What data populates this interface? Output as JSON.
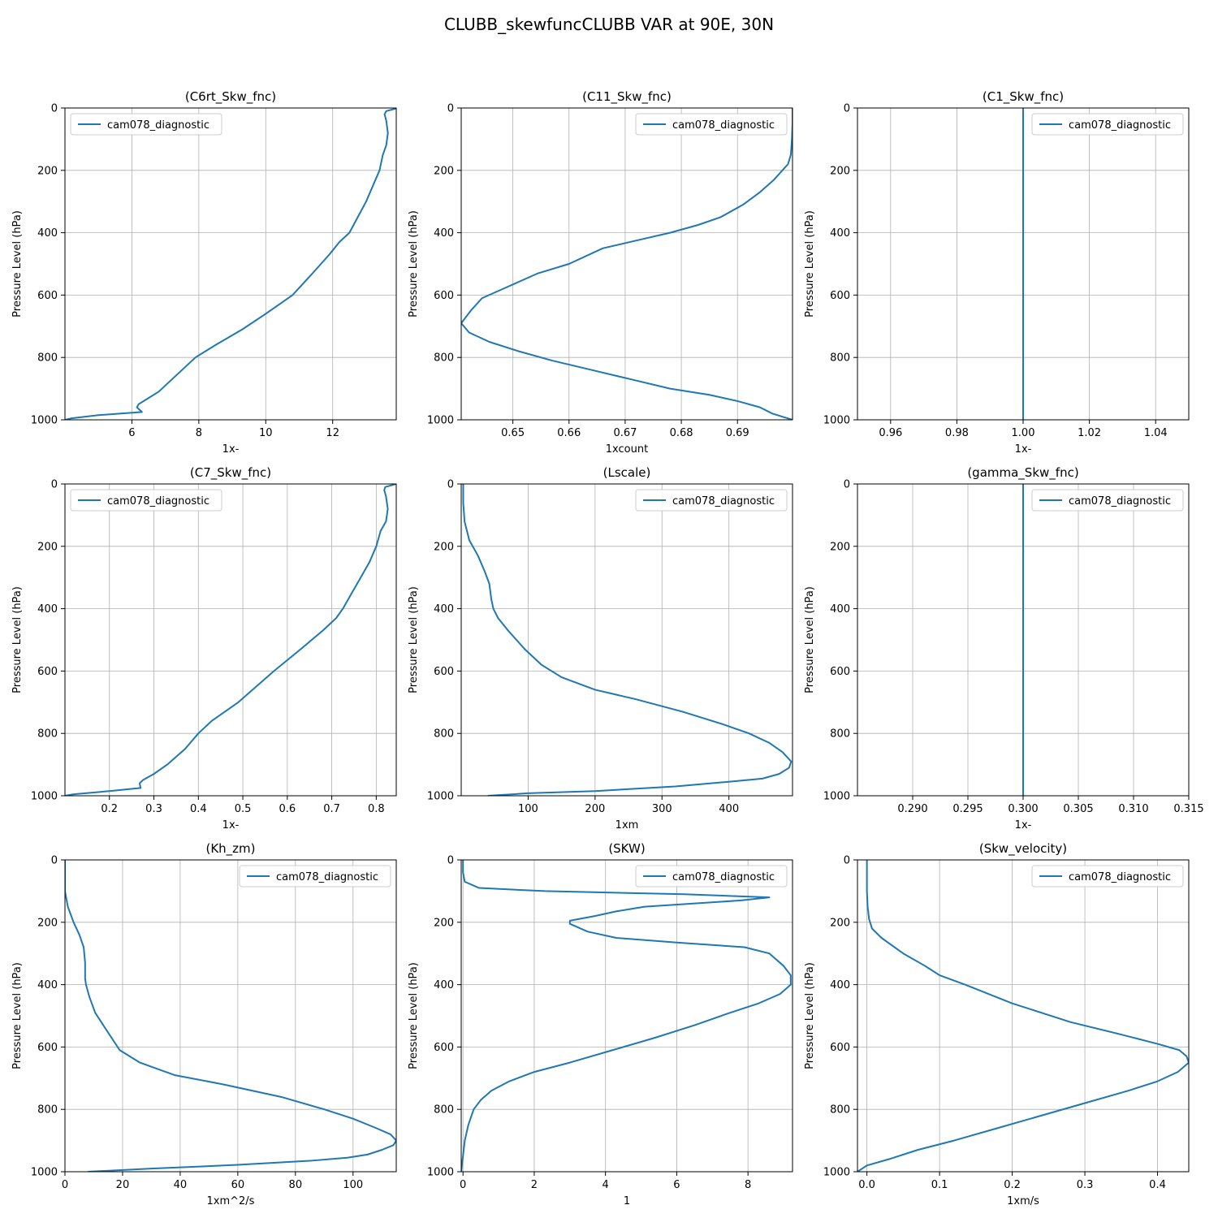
{
  "suptitle": "CLUBB_skewfuncCLUBB VAR at 90E, 30N",
  "line_color": "#1f77b4",
  "chart_data": [
    {
      "type": "line",
      "title": "(C6rt_Skw_fnc)",
      "xlabel": "1x-",
      "ylabel": "Pressure Level (hPa)",
      "xlim": [
        4.0,
        13.9
      ],
      "ylim": [
        1000,
        0
      ],
      "xticks": [
        "6",
        "8",
        "10",
        "12"
      ],
      "xtick_values": [
        6,
        8,
        10,
        12
      ],
      "yticks": [
        0,
        200,
        400,
        600,
        800,
        1000
      ],
      "grid": true,
      "legend_loc": "upper-left",
      "series": [
        {
          "name": "cam078_diagnostic",
          "x": [
            13.95,
            13.6,
            13.55,
            13.6,
            13.65,
            13.6,
            13.5,
            13.4,
            13.2,
            13.0,
            12.75,
            12.5,
            12.2,
            11.9,
            11.4,
            10.8,
            10.0,
            9.3,
            8.5,
            7.9,
            7.5,
            7.2,
            6.8,
            6.5,
            6.2,
            6.15,
            6.3,
            5.0,
            4.2,
            4.0
          ],
          "y": [
            0,
            10,
            20,
            40,
            80,
            120,
            150,
            200,
            250,
            300,
            350,
            400,
            430,
            470,
            530,
            600,
            660,
            710,
            760,
            800,
            840,
            870,
            910,
            930,
            950,
            960,
            975,
            985,
            995,
            1000
          ]
        }
      ]
    },
    {
      "type": "line",
      "title": "(C11_Skw_fnc)",
      "xlabel": "1xcount",
      "ylabel": "Pressure Level (hPa)",
      "xlim": [
        0.6408,
        0.6998
      ],
      "ylim": [
        1000,
        0
      ],
      "xticks": [
        "0.65",
        "0.66",
        "0.67",
        "0.68",
        "0.69"
      ],
      "xtick_values": [
        0.65,
        0.66,
        0.67,
        0.68,
        0.69
      ],
      "yticks": [
        0,
        200,
        400,
        600,
        800,
        1000
      ],
      "grid": true,
      "legend_loc": "upper-right",
      "series": [
        {
          "name": "cam078_diagnostic",
          "x": [
            0.6998,
            0.6998,
            0.6997,
            0.6995,
            0.699,
            0.698,
            0.6965,
            0.694,
            0.691,
            0.687,
            0.683,
            0.678,
            0.672,
            0.666,
            0.66,
            0.6545,
            0.6495,
            0.6445,
            0.6425,
            0.6408,
            0.6422,
            0.6458,
            0.651,
            0.657,
            0.664,
            0.671,
            0.678,
            0.685,
            0.69,
            0.694,
            0.6962,
            0.6998
          ],
          "y": [
            0,
            50,
            100,
            150,
            180,
            200,
            230,
            270,
            310,
            350,
            375,
            400,
            425,
            450,
            500,
            530,
            570,
            610,
            650,
            690,
            720,
            750,
            780,
            810,
            840,
            870,
            900,
            920,
            940,
            960,
            980,
            1000
          ]
        }
      ]
    },
    {
      "type": "line",
      "title": "(C1_Skw_fnc)",
      "xlabel": "1x-",
      "ylabel": "Pressure Level (hPa)",
      "xlim": [
        0.95,
        1.05
      ],
      "ylim": [
        1000,
        0
      ],
      "xticks": [
        "0.96",
        "0.98",
        "1.00",
        "1.02",
        "1.04"
      ],
      "xtick_values": [
        0.96,
        0.98,
        1.0,
        1.02,
        1.04
      ],
      "yticks": [
        0,
        200,
        400,
        600,
        800,
        1000
      ],
      "grid": true,
      "legend_loc": "upper-right",
      "series": [
        {
          "name": "cam078_diagnostic",
          "x": [
            1.0,
            1.0
          ],
          "y": [
            0,
            1000
          ]
        }
      ]
    },
    {
      "type": "line",
      "title": "(C7_Skw_fnc)",
      "xlabel": "1x-",
      "ylabel": "Pressure Level (hPa)",
      "xlim": [
        0.1,
        0.845
      ],
      "ylim": [
        1000,
        0
      ],
      "xticks": [
        "0.2",
        "0.3",
        "0.4",
        "0.5",
        "0.6",
        "0.7",
        "0.8"
      ],
      "xtick_values": [
        0.2,
        0.3,
        0.4,
        0.5,
        0.6,
        0.7,
        0.8
      ],
      "yticks": [
        0,
        200,
        400,
        600,
        800,
        1000
      ],
      "grid": true,
      "legend_loc": "upper-left",
      "series": [
        {
          "name": "cam078_diagnostic",
          "x": [
            0.845,
            0.82,
            0.818,
            0.822,
            0.826,
            0.822,
            0.81,
            0.8,
            0.785,
            0.765,
            0.745,
            0.725,
            0.71,
            0.68,
            0.63,
            0.57,
            0.49,
            0.43,
            0.4,
            0.37,
            0.33,
            0.3,
            0.275,
            0.268,
            0.27,
            0.2,
            0.12,
            0.1
          ],
          "y": [
            0,
            10,
            20,
            40,
            80,
            120,
            150,
            200,
            250,
            300,
            350,
            400,
            430,
            470,
            530,
            600,
            700,
            760,
            800,
            850,
            900,
            930,
            950,
            960,
            975,
            985,
            995,
            1000
          ]
        }
      ]
    },
    {
      "type": "line",
      "title": "(Lscale)",
      "xlabel": "1xm",
      "ylabel": "Pressure Level (hPa)",
      "xlim": [
        0,
        495
      ],
      "ylim": [
        1000,
        0
      ],
      "xticks": [
        "100",
        "200",
        "300",
        "400"
      ],
      "xtick_values": [
        100,
        200,
        300,
        400
      ],
      "yticks": [
        0,
        200,
        400,
        600,
        800,
        1000
      ],
      "grid": true,
      "legend_loc": "upper-right",
      "series": [
        {
          "name": "cam078_diagnostic",
          "x": [
            3,
            3,
            5,
            12,
            25,
            35,
            42,
            45,
            48,
            55,
            70,
            95,
            120,
            150,
            200,
            260,
            330,
            390,
            430,
            460,
            480,
            493,
            490,
            475,
            450,
            400,
            320,
            200,
            100,
            40
          ],
          "y": [
            0,
            60,
            120,
            180,
            230,
            280,
            320,
            370,
            400,
            430,
            470,
            530,
            580,
            620,
            660,
            690,
            730,
            770,
            800,
            830,
            860,
            890,
            910,
            930,
            945,
            955,
            970,
            985,
            992,
            1000
          ]
        }
      ]
    },
    {
      "type": "line",
      "title": "(gamma_Skw_fnc)",
      "xlabel": "1x-",
      "ylabel": "Pressure Level (hPa)",
      "xlim": [
        0.285,
        0.315
      ],
      "ylim": [
        1000,
        0
      ],
      "xticks": [
        "0.290",
        "0.295",
        "0.300",
        "0.305",
        "0.310",
        "0.315"
      ],
      "xtick_values": [
        0.29,
        0.295,
        0.3,
        0.305,
        0.31,
        0.315
      ],
      "yticks": [
        0,
        200,
        400,
        600,
        800,
        1000
      ],
      "grid": true,
      "legend_loc": "upper-right",
      "series": [
        {
          "name": "cam078_diagnostic",
          "x": [
            0.3,
            0.3
          ],
          "y": [
            0,
            1000
          ]
        }
      ]
    },
    {
      "type": "line",
      "title": "(Kh_zm)",
      "xlabel": "1xm^2/s",
      "ylabel": "Pressure Level (hPa)",
      "xlim": [
        0,
        115
      ],
      "ylim": [
        1000,
        0
      ],
      "xticks": [
        "0",
        "20",
        "40",
        "60",
        "80",
        "100"
      ],
      "xtick_values": [
        0,
        20,
        40,
        60,
        80,
        100
      ],
      "yticks": [
        0,
        200,
        400,
        600,
        800,
        1000
      ],
      "grid": true,
      "legend_loc": "upper-right",
      "series": [
        {
          "name": "cam078_diagnostic",
          "x": [
            0,
            0,
            1,
            3,
            5,
            6.5,
            7,
            7,
            7.3,
            8.5,
            10.5,
            14,
            19,
            26,
            38,
            55,
            75,
            90,
            100,
            108,
            113,
            115,
            114,
            110,
            105,
            98,
            85,
            60,
            30,
            8
          ],
          "y": [
            0,
            100,
            150,
            200,
            240,
            280,
            330,
            380,
            400,
            440,
            490,
            540,
            610,
            650,
            690,
            720,
            760,
            800,
            830,
            860,
            880,
            900,
            915,
            930,
            945,
            955,
            965,
            978,
            990,
            1000
          ]
        }
      ]
    },
    {
      "type": "line",
      "title": "(SKW)",
      "xlabel": "1",
      "ylabel": "Pressure Level (hPa)",
      "xlim": [
        -0.05,
        9.25
      ],
      "ylim": [
        1000,
        0
      ],
      "xticks": [
        "0",
        "2",
        "4",
        "6",
        "8"
      ],
      "xtick_values": [
        0,
        2,
        4,
        6,
        8
      ],
      "yticks": [
        0,
        200,
        400,
        600,
        800,
        1000
      ],
      "grid": true,
      "legend_loc": "upper-right",
      "series": [
        {
          "name": "cam078_diagnostic",
          "x": [
            0,
            0,
            0.05,
            0.45,
            2.3,
            6.2,
            8.6,
            7.8,
            5.1,
            4.3,
            3.7,
            3.0,
            3.0,
            3.5,
            4.3,
            6.0,
            7.9,
            8.6,
            9.0,
            9.2,
            9.2,
            8.9,
            8.3,
            7.5,
            6.5,
            5.4,
            4.2,
            3.0,
            2.0,
            1.3,
            0.8,
            0.5,
            0.3,
            0.15,
            0.05,
            0.0,
            -0.05
          ],
          "y": [
            0,
            40,
            70,
            90,
            100,
            110,
            120,
            130,
            150,
            165,
            180,
            195,
            205,
            230,
            250,
            265,
            280,
            300,
            340,
            370,
            400,
            430,
            460,
            490,
            530,
            570,
            610,
            650,
            680,
            710,
            740,
            770,
            800,
            850,
            900,
            950,
            1000
          ]
        }
      ]
    },
    {
      "type": "line",
      "title": "(Skw_velocity)",
      "xlabel": "1xm/s",
      "ylabel": "Pressure Level (hPa)",
      "xlim": [
        -0.013,
        0.443
      ],
      "ylim": [
        1000,
        0
      ],
      "xticks": [
        "0.0",
        "0.1",
        "0.2",
        "0.3",
        "0.4"
      ],
      "xtick_values": [
        0.0,
        0.1,
        0.2,
        0.3,
        0.4
      ],
      "yticks": [
        0,
        200,
        400,
        600,
        800,
        1000
      ],
      "grid": true,
      "legend_loc": "upper-right",
      "series": [
        {
          "name": "cam078_diagnostic",
          "x": [
            0.0,
            0.0,
            0.001,
            0.003,
            0.007,
            0.02,
            0.05,
            0.08,
            0.1,
            0.135,
            0.2,
            0.28,
            0.35,
            0.4,
            0.43,
            0.44,
            0.443,
            0.428,
            0.4,
            0.36,
            0.3,
            0.24,
            0.18,
            0.12,
            0.07,
            0.03,
            0.0,
            -0.013
          ],
          "y": [
            0,
            100,
            150,
            190,
            220,
            250,
            300,
            340,
            370,
            400,
            460,
            520,
            560,
            590,
            610,
            630,
            650,
            680,
            710,
            740,
            780,
            820,
            860,
            900,
            930,
            960,
            980,
            1000
          ]
        }
      ]
    }
  ]
}
